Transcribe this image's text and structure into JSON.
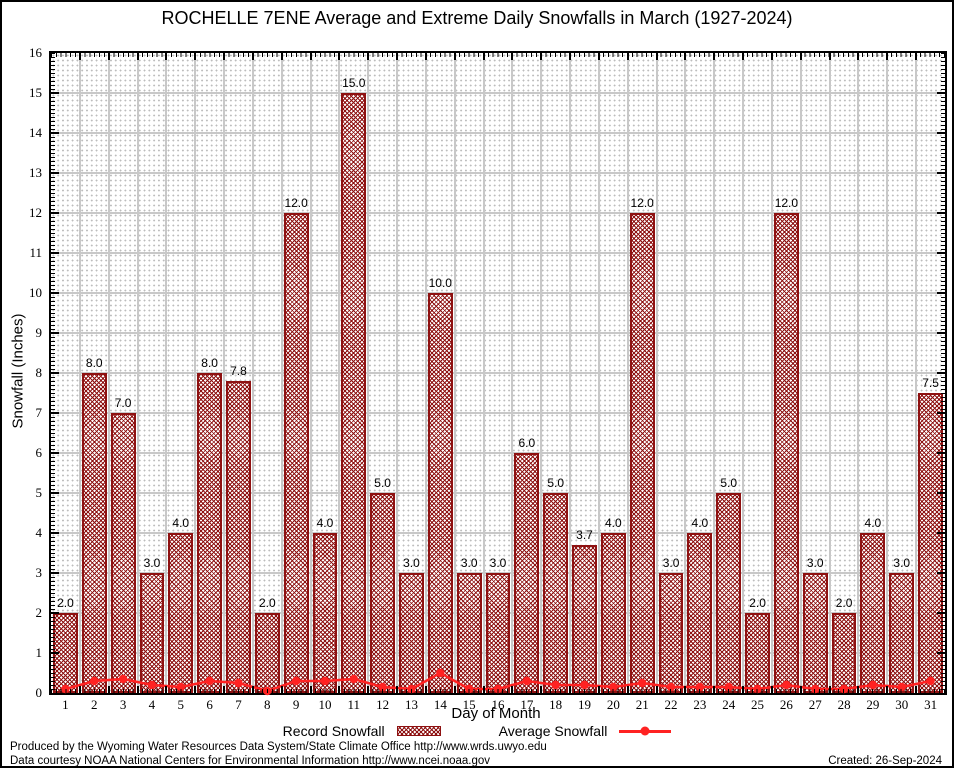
{
  "chart_data": {
    "type": "bar",
    "title": "ROCHELLE 7ENE Average and Extreme Daily Snowfalls in March (1927-2024)",
    "xlabel": "Day of Month",
    "ylabel": "Snowfall (Inches)",
    "ylim": [
      0,
      16
    ],
    "ytick_step": 1,
    "y_ticks": [
      0,
      1,
      2,
      3,
      4,
      5,
      6,
      7,
      8,
      9,
      10,
      11,
      12,
      13,
      14,
      15,
      16
    ],
    "categories": [
      1,
      2,
      3,
      4,
      5,
      6,
      7,
      8,
      9,
      10,
      11,
      12,
      13,
      14,
      15,
      16,
      17,
      18,
      19,
      20,
      21,
      22,
      23,
      24,
      25,
      26,
      27,
      28,
      29,
      30,
      31
    ],
    "series": [
      {
        "name": "Record Snowfall",
        "type": "bar",
        "color": "#8e1111",
        "values": [
          2.0,
          8.0,
          7.0,
          3.0,
          4.0,
          8.0,
          7.8,
          2.0,
          12.0,
          4.0,
          15.0,
          5.0,
          3.0,
          10.0,
          3.0,
          3.0,
          6.0,
          5.0,
          3.7,
          4.0,
          12.0,
          3.0,
          4.0,
          5.0,
          2.0,
          12.0,
          3.0,
          2.0,
          4.0,
          3.0,
          7.5
        ],
        "data_labels": [
          "2.0",
          "8.0",
          "7.0",
          "3.0",
          "4.0",
          "8.0",
          "7.8",
          "2.0",
          "12.0",
          "4.0",
          "15.0",
          "5.0",
          "3.0",
          "10.0",
          "3.0",
          "3.0",
          "6.0",
          "5.0",
          "3.7",
          "4.0",
          "12.0",
          "3.0",
          "4.0",
          "5.0",
          "2.0",
          "12.0",
          "3.0",
          "2.0",
          "4.0",
          "3.0",
          "7.5"
        ]
      },
      {
        "name": "Average Snowfall",
        "type": "line",
        "color": "#ff2222",
        "values": [
          0.1,
          0.3,
          0.35,
          0.2,
          0.15,
          0.3,
          0.25,
          0.05,
          0.3,
          0.3,
          0.35,
          0.15,
          0.1,
          0.5,
          0.1,
          0.1,
          0.3,
          0.2,
          0.2,
          0.15,
          0.25,
          0.15,
          0.15,
          0.15,
          0.1,
          0.2,
          0.1,
          0.1,
          0.2,
          0.15,
          0.3
        ]
      }
    ],
    "legend_position": "bottom",
    "grid": {
      "major": true,
      "minor": "dotted"
    }
  },
  "colors": {
    "bar": "#8e1111",
    "line": "#ff2222",
    "grid_major": "#c8c8c8",
    "grid_minor_dots": "#bdbdbd",
    "axis": "#000000",
    "background": "#ffffff"
  },
  "footer": {
    "line1": "Produced by the Wyoming Water Resources Data System/State Climate Office http://www.wrds.uwyo.edu",
    "line2": "Data courtesy NOAA National Centers for Environmental Information http://www.ncei.noaa.gov",
    "created": "Created: 26-Sep-2024"
  }
}
